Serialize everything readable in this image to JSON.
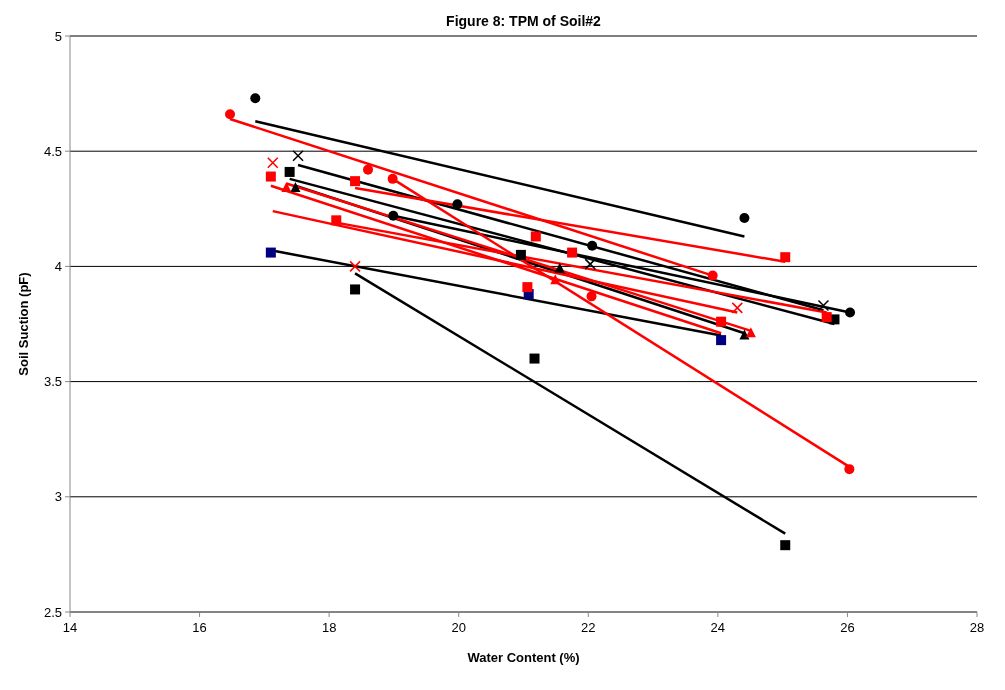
{
  "chart_data": {
    "type": "scatter",
    "title": "Figure 8: TPM of Soil#2",
    "xlabel": "Water Content (%)",
    "ylabel": "Soil Suction (pF)",
    "xlim": [
      14,
      28
    ],
    "xticks": [
      14,
      16,
      18,
      20,
      22,
      24,
      26,
      28
    ],
    "ylim": [
      2.5,
      5
    ],
    "yticks": [
      2.5,
      3,
      3.5,
      4,
      4.5,
      5
    ],
    "grid": "y",
    "series": [
      {
        "color": "#000000",
        "marker": "circle",
        "x": [
          16.86,
          19.98,
          24.41
        ],
        "values": [
          4.73,
          4.27,
          4.21
        ]
      },
      {
        "color": "#000000",
        "marker": "cross",
        "x": [
          17.52,
          22.03,
          25.63
        ],
        "values": [
          4.48,
          4.01,
          3.83
        ]
      },
      {
        "color": "#000000",
        "marker": "circle",
        "x": [
          18.99,
          22.06,
          26.04
        ],
        "values": [
          4.22,
          4.09,
          3.8
        ]
      },
      {
        "color": "#000000",
        "marker": "square",
        "x": [
          17.39,
          20.96,
          25.8
        ],
        "values": [
          4.41,
          4.05,
          3.77
        ]
      },
      {
        "color": "#000000",
        "marker": "triangle",
        "x": [
          17.48,
          21.56,
          24.41
        ],
        "values": [
          4.34,
          3.99,
          3.7
        ]
      },
      {
        "color": "#000000",
        "marker": "square",
        "x": [
          18.4,
          21.17,
          25.04
        ],
        "values": [
          3.9,
          3.6,
          2.79
        ]
      },
      {
        "color": "#000080",
        "marker": "square",
        "x": [
          17.1,
          21.08,
          24.05
        ],
        "values": [
          4.06,
          3.88,
          3.68
        ]
      },
      {
        "color": "#ff0000",
        "marker": "circle",
        "x": [
          16.47,
          18.6,
          23.92
        ],
        "values": [
          4.66,
          4.42,
          3.96
        ]
      },
      {
        "color": "#ff0000",
        "marker": "square",
        "x": [
          17.1,
          21.06,
          24.05
        ],
        "values": [
          4.39,
          3.91,
          3.76
        ]
      },
      {
        "color": "#ff0000",
        "marker": "cross",
        "x": [
          17.13,
          18.4,
          24.3
        ],
        "values": [
          4.45,
          4.0,
          3.82
        ]
      },
      {
        "color": "#ff0000",
        "marker": "triangle",
        "x": [
          17.34,
          21.49,
          24.51
        ],
        "values": [
          4.34,
          3.94,
          3.71
        ]
      },
      {
        "color": "#ff0000",
        "marker": "circle",
        "x": [
          18.98,
          22.05,
          26.03
        ],
        "values": [
          4.38,
          3.87,
          3.12
        ]
      },
      {
        "color": "#ff0000",
        "marker": "square",
        "x": [
          18.4,
          21.19,
          25.04
        ],
        "values": [
          4.37,
          4.13,
          4.04
        ]
      },
      {
        "color": "#ff0000",
        "marker": "square",
        "x": [
          18.11,
          21.75,
          25.68
        ],
        "values": [
          4.2,
          4.06,
          3.78
        ]
      },
      {
        "type": "line",
        "color": "#000000",
        "marker": "none",
        "x": [
          16.86,
          24.41
        ],
        "values": [
          4.63,
          4.13
        ]
      },
      {
        "type": "line",
        "color": "#000000",
        "marker": "none",
        "x": [
          17.52,
          25.63
        ],
        "values": [
          4.44,
          3.81
        ]
      },
      {
        "type": "line",
        "color": "#000000",
        "marker": "none",
        "x": [
          18.99,
          26.04
        ],
        "values": [
          4.22,
          3.8
        ]
      },
      {
        "type": "line",
        "color": "#000000",
        "marker": "none",
        "x": [
          17.39,
          25.8
        ],
        "values": [
          4.38,
          3.75
        ]
      },
      {
        "type": "line",
        "color": "#000000",
        "marker": "none",
        "x": [
          17.48,
          24.41
        ],
        "values": [
          4.35,
          3.71
        ]
      },
      {
        "type": "line",
        "color": "#000000",
        "marker": "none",
        "x": [
          18.4,
          25.04
        ],
        "values": [
          3.97,
          2.84
        ]
      },
      {
        "type": "line",
        "color": "#000000",
        "marker": "none",
        "x": [
          17.1,
          24.05
        ],
        "values": [
          4.07,
          3.7
        ]
      },
      {
        "type": "line",
        "color": "#ff0000",
        "marker": "none",
        "x": [
          16.47,
          23.92
        ],
        "values": [
          4.64,
          3.96
        ]
      },
      {
        "type": "line",
        "color": "#ff0000",
        "marker": "none",
        "x": [
          17.1,
          24.05
        ],
        "values": [
          4.35,
          3.71
        ]
      },
      {
        "type": "line",
        "color": "#ff0000",
        "marker": "none",
        "x": [
          17.13,
          24.3
        ],
        "values": [
          4.24,
          3.8
        ]
      },
      {
        "type": "line",
        "color": "#ff0000",
        "marker": "none",
        "x": [
          17.34,
          24.51
        ],
        "values": [
          4.36,
          3.72
        ]
      },
      {
        "type": "line",
        "color": "#ff0000",
        "marker": "none",
        "x": [
          18.98,
          26.03
        ],
        "values": [
          4.38,
          3.13
        ]
      },
      {
        "type": "line",
        "color": "#ff0000",
        "marker": "none",
        "x": [
          18.4,
          25.04
        ],
        "values": [
          4.34,
          4.02
        ]
      },
      {
        "type": "line",
        "color": "#ff0000",
        "marker": "none",
        "x": [
          18.11,
          25.68
        ],
        "values": [
          4.19,
          3.8
        ]
      }
    ]
  }
}
